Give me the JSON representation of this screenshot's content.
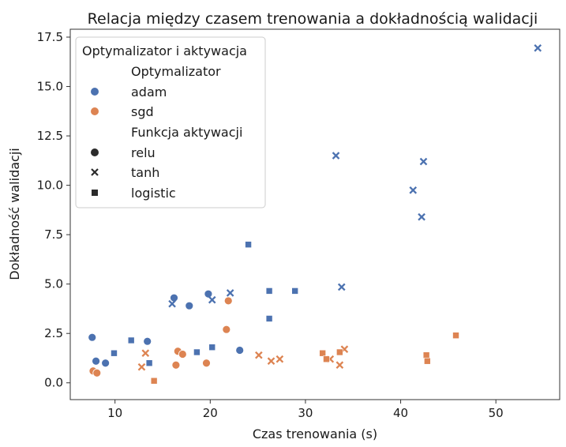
{
  "chart_data": {
    "type": "scatter",
    "title": "Relacja między czasem trenowania a dokładnością walidacji",
    "xlabel": "Czas trenowania (s)",
    "ylabel": "Dokładność walidacji",
    "xlim": [
      5.3,
      56.7
    ],
    "ylim": [
      -0.85,
      17.9
    ],
    "x_ticks": [
      "10",
      "20",
      "30",
      "40",
      "50"
    ],
    "y_ticks": [
      "0.0",
      "2.5",
      "5.0",
      "7.5",
      "10.0",
      "12.5",
      "15.0",
      "17.5"
    ],
    "grid": false,
    "legend": {
      "position": "top-left",
      "title": "Optymalizator i aktywacja",
      "hue_title": "Optymalizator",
      "hue_entries": [
        {
          "label": "adam",
          "color": "#4c72b0"
        },
        {
          "label": "sgd",
          "color": "#dd8452"
        }
      ],
      "style_title": "Funkcja aktywacji",
      "style_entries": [
        {
          "label": "relu",
          "marker": "circle"
        },
        {
          "label": "tanh",
          "marker": "x"
        },
        {
          "label": "logistic",
          "marker": "square"
        }
      ]
    },
    "colors": {
      "adam": "#4c72b0",
      "sgd": "#dd8452"
    },
    "points": [
      {
        "x": 7.6,
        "y": 2.3,
        "opt": "adam",
        "act": "relu"
      },
      {
        "x": 8.0,
        "y": 1.1,
        "opt": "adam",
        "act": "relu"
      },
      {
        "x": 9.0,
        "y": 1.0,
        "opt": "adam",
        "act": "relu"
      },
      {
        "x": 13.4,
        "y": 2.1,
        "opt": "adam",
        "act": "relu"
      },
      {
        "x": 16.2,
        "y": 4.3,
        "opt": "adam",
        "act": "relu"
      },
      {
        "x": 17.8,
        "y": 3.9,
        "opt": "adam",
        "act": "relu"
      },
      {
        "x": 19.8,
        "y": 4.5,
        "opt": "adam",
        "act": "relu"
      },
      {
        "x": 23.1,
        "y": 1.65,
        "opt": "adam",
        "act": "relu"
      },
      {
        "x": 16.0,
        "y": 4.0,
        "opt": "adam",
        "act": "tanh"
      },
      {
        "x": 20.2,
        "y": 4.2,
        "opt": "adam",
        "act": "tanh"
      },
      {
        "x": 22.1,
        "y": 4.55,
        "opt": "adam",
        "act": "tanh"
      },
      {
        "x": 33.2,
        "y": 11.5,
        "opt": "adam",
        "act": "tanh"
      },
      {
        "x": 33.8,
        "y": 4.85,
        "opt": "adam",
        "act": "tanh"
      },
      {
        "x": 41.3,
        "y": 9.75,
        "opt": "adam",
        "act": "tanh"
      },
      {
        "x": 42.2,
        "y": 8.4,
        "opt": "adam",
        "act": "tanh"
      },
      {
        "x": 42.4,
        "y": 11.2,
        "opt": "adam",
        "act": "tanh"
      },
      {
        "x": 54.4,
        "y": 16.95,
        "opt": "adam",
        "act": "tanh"
      },
      {
        "x": 9.9,
        "y": 1.5,
        "opt": "adam",
        "act": "logistic"
      },
      {
        "x": 11.7,
        "y": 2.15,
        "opt": "adam",
        "act": "logistic"
      },
      {
        "x": 13.6,
        "y": 1.0,
        "opt": "adam",
        "act": "logistic"
      },
      {
        "x": 18.6,
        "y": 1.55,
        "opt": "adam",
        "act": "logistic"
      },
      {
        "x": 20.2,
        "y": 1.8,
        "opt": "adam",
        "act": "logistic"
      },
      {
        "x": 24.0,
        "y": 7.0,
        "opt": "adam",
        "act": "logistic"
      },
      {
        "x": 26.2,
        "y": 4.65,
        "opt": "adam",
        "act": "logistic"
      },
      {
        "x": 26.2,
        "y": 3.25,
        "opt": "adam",
        "act": "logistic"
      },
      {
        "x": 28.9,
        "y": 4.65,
        "opt": "adam",
        "act": "logistic"
      },
      {
        "x": 7.7,
        "y": 0.6,
        "opt": "sgd",
        "act": "relu"
      },
      {
        "x": 8.1,
        "y": 0.5,
        "opt": "sgd",
        "act": "relu"
      },
      {
        "x": 16.4,
        "y": 0.9,
        "opt": "sgd",
        "act": "relu"
      },
      {
        "x": 16.6,
        "y": 1.6,
        "opt": "sgd",
        "act": "relu"
      },
      {
        "x": 17.1,
        "y": 1.45,
        "opt": "sgd",
        "act": "relu"
      },
      {
        "x": 19.6,
        "y": 1.0,
        "opt": "sgd",
        "act": "relu"
      },
      {
        "x": 21.7,
        "y": 2.7,
        "opt": "sgd",
        "act": "relu"
      },
      {
        "x": 21.9,
        "y": 4.15,
        "opt": "sgd",
        "act": "relu"
      },
      {
        "x": 12.8,
        "y": 0.8,
        "opt": "sgd",
        "act": "tanh"
      },
      {
        "x": 13.2,
        "y": 1.5,
        "opt": "sgd",
        "act": "tanh"
      },
      {
        "x": 25.1,
        "y": 1.4,
        "opt": "sgd",
        "act": "tanh"
      },
      {
        "x": 26.4,
        "y": 1.1,
        "opt": "sgd",
        "act": "tanh"
      },
      {
        "x": 27.3,
        "y": 1.2,
        "opt": "sgd",
        "act": "tanh"
      },
      {
        "x": 32.6,
        "y": 1.2,
        "opt": "sgd",
        "act": "tanh"
      },
      {
        "x": 33.6,
        "y": 0.9,
        "opt": "sgd",
        "act": "tanh"
      },
      {
        "x": 34.1,
        "y": 1.7,
        "opt": "sgd",
        "act": "tanh"
      },
      {
        "x": 14.1,
        "y": 0.1,
        "opt": "sgd",
        "act": "logistic"
      },
      {
        "x": 31.8,
        "y": 1.5,
        "opt": "sgd",
        "act": "logistic"
      },
      {
        "x": 32.2,
        "y": 1.2,
        "opt": "sgd",
        "act": "logistic"
      },
      {
        "x": 33.6,
        "y": 1.55,
        "opt": "sgd",
        "act": "logistic"
      },
      {
        "x": 42.7,
        "y": 1.4,
        "opt": "sgd",
        "act": "logistic"
      },
      {
        "x": 42.8,
        "y": 1.1,
        "opt": "sgd",
        "act": "logistic"
      },
      {
        "x": 45.8,
        "y": 2.4,
        "opt": "sgd",
        "act": "logistic"
      }
    ]
  }
}
